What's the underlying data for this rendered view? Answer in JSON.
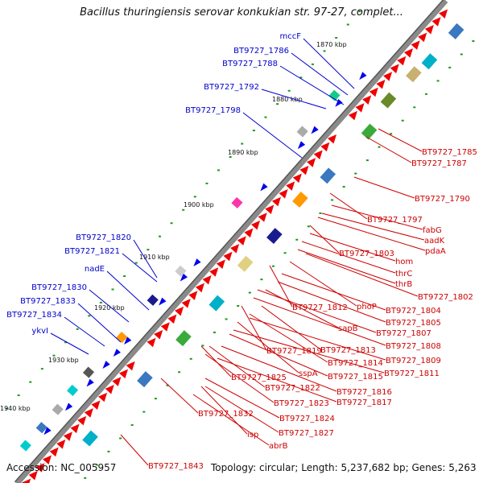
{
  "header": {
    "title": "Bacillus thuringiensis serovar konkukian str. 97-27, complet..."
  },
  "footer": {
    "accession": "Accession: NC_005957",
    "summary": "Topology: circular; Length: 5,237,682 bp; Genes: 5,263"
  },
  "colors": {
    "backbone": "#8a8a8a",
    "forward": "#ee0000",
    "reverse": "#0000ee",
    "tick": "#1a9a1a",
    "label_forward": "#cc0000",
    "label_reverse": "#0000cc"
  },
  "scale_ticks": [
    "1870 kbp",
    "1880 kbp",
    "1890 kbp",
    "1900 kbp",
    "1910 kbp",
    "1920 kbp",
    "1930 kbp",
    "1940 kbp"
  ],
  "genes_left": [
    "mccF",
    "BT9727_1786",
    "BT9727_1788",
    "BT9727_1792",
    "BT9727_1798",
    "BT9727_1820",
    "BT9727_1821",
    "nadE",
    "BT9727_1830",
    "BT9727_1833",
    "BT9727_1834",
    "ykvI"
  ],
  "genes_right": [
    "BT9727_1785",
    "BT9727_1787",
    "BT9727_1790",
    "BT9727_1797",
    "fabG",
    "aadK",
    "pdaA",
    "BT9727_1803",
    "hom",
    "thrC",
    "thrB",
    "BT9727_1802",
    "BT9727_1812",
    "phoP",
    "BT9727_1804",
    "BT9727_1805",
    "sapB",
    "BT9727_1807",
    "BT9727_1808",
    "BT9727_1819",
    "BT9727_1813",
    "BT9727_1814",
    "BT9727_1809",
    "sspA",
    "BT9727_1811",
    "BT9727_1815",
    "BT9727_1825",
    "BT9727_1822",
    "BT9727_1816",
    "BT9727_1823",
    "BT9727_1817",
    "BT9727_1832",
    "BT9727_1824",
    "isp",
    "BT9727_1827",
    "abrB",
    "BT9727_1843"
  ]
}
